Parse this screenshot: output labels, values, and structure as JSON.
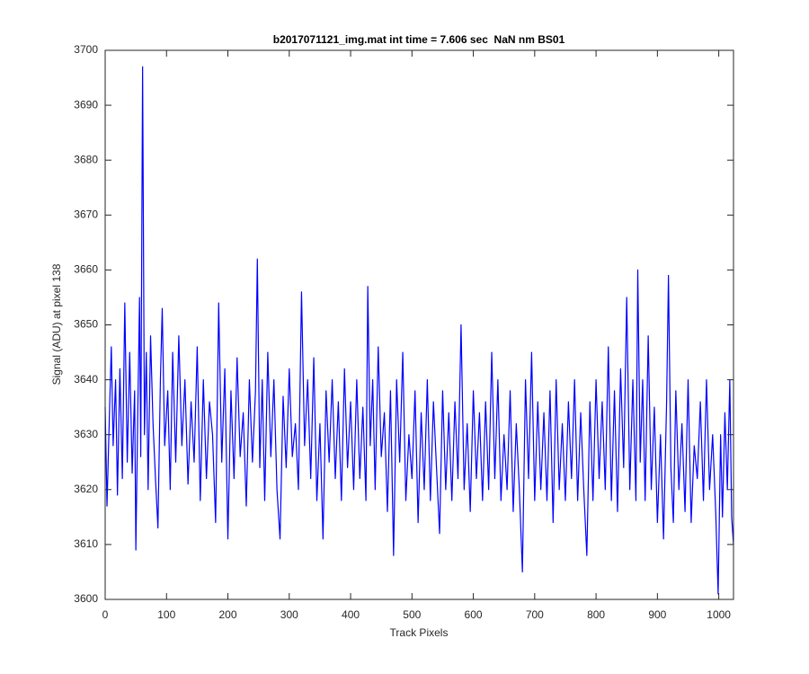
{
  "chart_data": {
    "type": "line",
    "title": "b2017071121_img.mat int time = 7.606 sec  NaN nm BS01",
    "x_label": "Track Pixels",
    "y_label": "Signal (ADU) at pixel 138",
    "xlim": [
      0,
      1024
    ],
    "xticks": [
      0,
      100,
      200,
      300,
      400,
      500,
      600,
      700,
      800,
      900,
      1000
    ],
    "ylim": [
      3600,
      3700
    ],
    "yticks": [
      3600,
      3610,
      3620,
      3630,
      3640,
      3650,
      3660,
      3670,
      3680,
      3690,
      3700
    ],
    "grid": false,
    "x": [
      0,
      3,
      7,
      10,
      13,
      17,
      20,
      24,
      28,
      32,
      36,
      40,
      44,
      48,
      50,
      53,
      56,
      58,
      61,
      64,
      67,
      70,
      74,
      78,
      82,
      86,
      90,
      93,
      97,
      102,
      106,
      110,
      115,
      120,
      125,
      130,
      135,
      140,
      145,
      150,
      155,
      160,
      165,
      170,
      175,
      180,
      185,
      190,
      195,
      200,
      205,
      210,
      215,
      220,
      225,
      230,
      235,
      240,
      245,
      248,
      252,
      256,
      260,
      265,
      270,
      275,
      280,
      285,
      290,
      295,
      300,
      305,
      310,
      315,
      320,
      325,
      330,
      335,
      340,
      345,
      350,
      355,
      360,
      365,
      370,
      375,
      380,
      385,
      390,
      395,
      400,
      405,
      410,
      415,
      420,
      425,
      428,
      432,
      436,
      440,
      445,
      450,
      455,
      460,
      465,
      470,
      475,
      480,
      485,
      490,
      495,
      500,
      505,
      510,
      515,
      520,
      525,
      530,
      535,
      540,
      545,
      550,
      555,
      560,
      565,
      570,
      575,
      580,
      585,
      590,
      595,
      600,
      605,
      610,
      615,
      620,
      625,
      630,
      635,
      640,
      645,
      650,
      655,
      660,
      665,
      670,
      675,
      680,
      685,
      690,
      695,
      700,
      705,
      710,
      715,
      720,
      725,
      730,
      735,
      740,
      745,
      750,
      755,
      760,
      765,
      770,
      775,
      780,
      785,
      790,
      795,
      800,
      805,
      810,
      815,
      820,
      825,
      830,
      835,
      840,
      845,
      850,
      855,
      860,
      865,
      868,
      872,
      876,
      880,
      885,
      890,
      895,
      900,
      905,
      910,
      915,
      918,
      922,
      926,
      930,
      935,
      940,
      945,
      950,
      955,
      960,
      965,
      970,
      975,
      980,
      985,
      990,
      995,
      999,
      1003,
      1006,
      1010,
      1014,
      1018,
      1021,
      1024
    ],
    "series": [
      {
        "name": "Signal",
        "color": "#0000ff",
        "values": [
          3635,
          3617,
          3634,
          3646,
          3628,
          3640,
          3619,
          3642,
          3622,
          3654,
          3625,
          3645,
          3623,
          3638,
          3609,
          3633,
          3655,
          3626,
          3697,
          3630,
          3645,
          3620,
          3648,
          3632,
          3622,
          3613,
          3640,
          3653,
          3628,
          3638,
          3620,
          3645,
          3625,
          3648,
          3628,
          3640,
          3621,
          3636,
          3625,
          3646,
          3618,
          3640,
          3622,
          3636,
          3630,
          3614,
          3654,
          3625,
          3642,
          3611,
          3638,
          3622,
          3644,
          3626,
          3634,
          3617,
          3640,
          3625,
          3638,
          3662,
          3624,
          3640,
          3618,
          3645,
          3626,
          3640,
          3620,
          3611,
          3637,
          3624,
          3642,
          3626,
          3632,
          3620,
          3656,
          3628,
          3640,
          3622,
          3644,
          3618,
          3632,
          3611,
          3638,
          3625,
          3640,
          3622,
          3636,
          3618,
          3642,
          3624,
          3636,
          3620,
          3640,
          3622,
          3635,
          3618,
          3657,
          3628,
          3640,
          3620,
          3646,
          3626,
          3634,
          3616,
          3638,
          3608,
          3640,
          3625,
          3645,
          3618,
          3630,
          3622,
          3638,
          3614,
          3634,
          3620,
          3640,
          3618,
          3636,
          3624,
          3612,
          3638,
          3620,
          3634,
          3618,
          3636,
          3622,
          3650,
          3620,
          3632,
          3616,
          3638,
          3622,
          3634,
          3618,
          3636,
          3620,
          3645,
          3622,
          3640,
          3618,
          3630,
          3620,
          3638,
          3616,
          3632,
          3620,
          3605,
          3640,
          3622,
          3645,
          3618,
          3636,
          3620,
          3634,
          3618,
          3638,
          3614,
          3640,
          3620,
          3632,
          3618,
          3636,
          3622,
          3640,
          3618,
          3634,
          3620,
          3608,
          3636,
          3618,
          3640,
          3622,
          3636,
          3620,
          3646,
          3618,
          3638,
          3616,
          3642,
          3624,
          3655,
          3620,
          3640,
          3618,
          3660,
          3625,
          3640,
          3618,
          3648,
          3620,
          3635,
          3614,
          3630,
          3611,
          3636,
          3659,
          3624,
          3614,
          3638,
          3620,
          3632,
          3616,
          3640,
          3614,
          3628,
          3622,
          3636,
          3618,
          3640,
          3620,
          3630,
          3616,
          3601,
          3630,
          3615,
          3634,
          3620,
          3640,
          3615,
          3610
        ]
      }
    ]
  }
}
